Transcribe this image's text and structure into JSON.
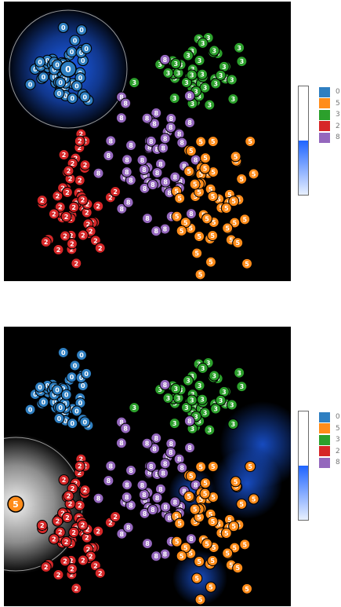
{
  "colors": {
    "0": "#2f7fc1",
    "5": "#ff8c1a",
    "3": "#2ca02c",
    "2": "#d62728",
    "8": "#9467bd",
    "panel_background": "#000000",
    "heat_high": "#1e64ff",
    "heat_white": "#ffffff"
  },
  "chart_data": [
    {
      "type": "scatter",
      "title": "",
      "legend": {
        "placement": "right",
        "entries": [
          "0",
          "5",
          "3",
          "2",
          "8"
        ]
      },
      "colorbar": {
        "levels": [
          "low",
          "high"
        ],
        "fill_fraction": 0.5
      },
      "focus": {
        "label": "0",
        "x": 82,
        "y": 86,
        "lens_radius": 75,
        "heat_color": "blue"
      },
      "clusters": [
        {
          "label": "0",
          "center": [
            75,
            93
          ],
          "spread": [
            22,
            28
          ],
          "count": 55
        },
        {
          "label": "3",
          "center": [
            245,
            95
          ],
          "spread": [
            30,
            30
          ],
          "count": 50
        },
        {
          "label": "8",
          "center": [
            190,
            200
          ],
          "spread": [
            45,
            55
          ],
          "count": 60
        },
        {
          "label": "2",
          "center": [
            95,
            255
          ],
          "spread": [
            30,
            45
          ],
          "count": 55
        },
        {
          "label": "5",
          "center": [
            265,
            245
          ],
          "spread": [
            35,
            55
          ],
          "count": 55
        }
      ]
    },
    {
      "type": "scatter",
      "title": "",
      "legend": {
        "placement": "right",
        "entries": [
          "0",
          "5",
          "3",
          "2",
          "8"
        ]
      },
      "colorbar": {
        "levels": [
          "low",
          "high"
        ],
        "fill_fraction": 0.5
      },
      "focus": {
        "label": "5",
        "x": 15,
        "y": 226,
        "lens_radius": 85,
        "heat_color": "white"
      },
      "clusters": [
        {
          "label": "0",
          "center": [
            75,
            93
          ],
          "spread": [
            22,
            28
          ],
          "count": 55
        },
        {
          "label": "3",
          "center": [
            245,
            95
          ],
          "spread": [
            30,
            30
          ],
          "count": 50
        },
        {
          "label": "8",
          "center": [
            190,
            200
          ],
          "spread": [
            45,
            55
          ],
          "count": 60
        },
        {
          "label": "2",
          "center": [
            95,
            255
          ],
          "spread": [
            30,
            45
          ],
          "count": 55
        },
        {
          "label": "5",
          "center": [
            265,
            245
          ],
          "spread": [
            35,
            55
          ],
          "count": 55
        }
      ]
    }
  ]
}
